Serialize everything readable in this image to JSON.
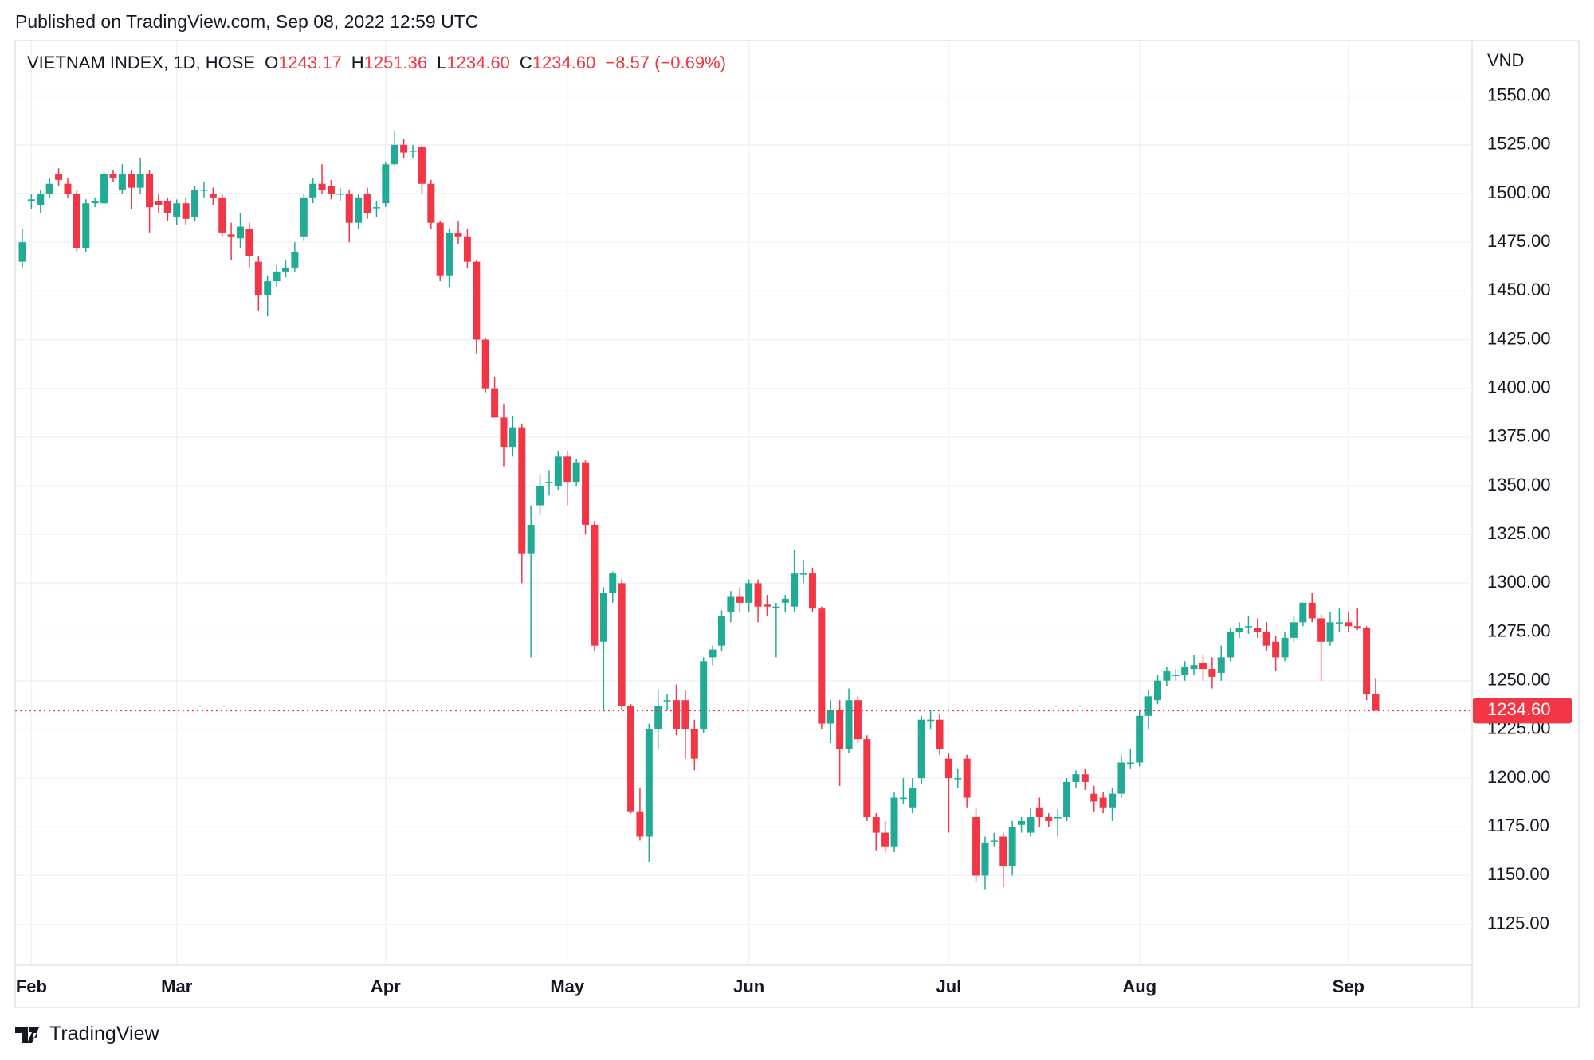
{
  "published": "Published on TradingView.com, Sep 08, 2022 12:59 UTC",
  "footer": "TradingView",
  "chart_data": {
    "type": "candlestick",
    "legend": {
      "symbol": "VIETNAM INDEX, 1D, HOSE",
      "items": [
        {
          "key": "O",
          "value": "1243.17"
        },
        {
          "key": "H",
          "value": "1251.36"
        },
        {
          "key": "L",
          "value": "1234.60"
        },
        {
          "key": "C",
          "value": "1234.60"
        }
      ],
      "change": "−8.57 (−0.69%)"
    },
    "y_axis_label": "VND",
    "last_price_label": "1234.60",
    "up_color": "#22ab94",
    "down_color": "#f23645",
    "grid": true,
    "ylim": [
      1104,
      1576
    ],
    "yticks": [
      {
        "value": 1125,
        "label": "1125.00"
      },
      {
        "value": 1150,
        "label": "1150.00"
      },
      {
        "value": 1175,
        "label": "1175.00"
      },
      {
        "value": 1200,
        "label": "1200.00"
      },
      {
        "value": 1225,
        "label": "1225.00"
      },
      {
        "value": 1250,
        "label": "1250.00"
      },
      {
        "value": 1275,
        "label": "1275.00"
      },
      {
        "value": 1300,
        "label": "1300.00"
      },
      {
        "value": 1325,
        "label": "1325.00"
      },
      {
        "value": 1350,
        "label": "1350.00"
      },
      {
        "value": 1375,
        "label": "1375.00"
      },
      {
        "value": 1400,
        "label": "1400.00"
      },
      {
        "value": 1425,
        "label": "1425.00"
      },
      {
        "value": 1450,
        "label": "1450.00"
      },
      {
        "value": 1475,
        "label": "1475.00"
      },
      {
        "value": 1500,
        "label": "1500.00"
      },
      {
        "value": 1525,
        "label": "1525.00"
      },
      {
        "value": 1550,
        "label": "1550.00"
      }
    ],
    "categories": [
      null,
      "Feb",
      null,
      null,
      null,
      null,
      null,
      null,
      null,
      null,
      null,
      null,
      null,
      null,
      null,
      null,
      null,
      "Mar",
      null,
      null,
      null,
      null,
      null,
      null,
      null,
      null,
      null,
      null,
      null,
      null,
      null,
      null,
      null,
      null,
      null,
      null,
      null,
      null,
      null,
      null,
      "Apr",
      null,
      null,
      null,
      null,
      null,
      null,
      null,
      null,
      null,
      null,
      null,
      null,
      null,
      null,
      null,
      null,
      null,
      null,
      null,
      "May",
      null,
      null,
      null,
      null,
      null,
      null,
      null,
      null,
      null,
      null,
      null,
      null,
      null,
      null,
      null,
      null,
      null,
      null,
      null,
      "Jun",
      null,
      null,
      null,
      null,
      null,
      null,
      null,
      null,
      null,
      null,
      null,
      null,
      null,
      null,
      null,
      null,
      null,
      null,
      null,
      null,
      null,
      "Jul",
      null,
      null,
      null,
      null,
      null,
      null,
      null,
      null,
      null,
      null,
      null,
      null,
      null,
      null,
      null,
      null,
      null,
      null,
      null,
      null,
      "Aug",
      null,
      null,
      null,
      null,
      null,
      null,
      null,
      null,
      null,
      null,
      null,
      null,
      null,
      null,
      null,
      null,
      null,
      null,
      null,
      null,
      null,
      null,
      "Sep",
      null,
      null,
      null
    ],
    "open": [
      1465,
      1496,
      1494,
      1500,
      1510,
      1505,
      1500,
      1472,
      1495,
      1495,
      1510,
      1502,
      1510,
      1503,
      1510,
      1496,
      1496,
      1488,
      1495,
      1488,
      1502,
      1500,
      1498,
      1479,
      1477,
      1482,
      1465,
      1448,
      1455,
      1460,
      1462,
      1478,
      1498,
      1505,
      1504,
      1500,
      1500,
      1485,
      1500,
      1493,
      1495,
      1515,
      1525,
      1522,
      1524,
      1505,
      1485,
      1458,
      1480,
      1478,
      1465,
      1425,
      1400,
      1385,
      1370,
      1380,
      1315,
      1340,
      1352,
      1350,
      1365,
      1352,
      1362,
      1330,
      1270,
      1295,
      1300,
      1237,
      1183,
      1170,
      1225,
      1240,
      1240,
      1240,
      1225,
      1225,
      1262,
      1268,
      1285,
      1293,
      1290,
      1300,
      1289,
      1288,
      1290,
      1288,
      1305,
      1305,
      1287,
      1228,
      1235,
      1215,
      1240,
      1220,
      1180,
      1172,
      1165,
      1190,
      1185,
      1200,
      1230,
      1230,
      1210,
      1200,
      1210,
      1180,
      1150,
      1168,
      1170,
      1155,
      1176,
      1172,
      1185,
      1180,
      1180,
      1180,
      1198,
      1202,
      1192,
      1190,
      1185,
      1192,
      1208,
      1208,
      1232,
      1240,
      1250,
      1253,
      1253,
      1256,
      1259,
      1256,
      1254,
      1262,
      1275,
      1278,
      1277,
      1275,
      1270,
      1262,
      1272,
      1280,
      1290,
      1282,
      1270,
      1280,
      1280,
      1278,
      1277,
      1243.17
    ],
    "high": [
      1482,
      1500,
      1502,
      1508,
      1513,
      1508,
      1502,
      1497,
      1498,
      1511,
      1512,
      1515,
      1512,
      1518,
      1512,
      1500,
      1498,
      1497,
      1498,
      1504,
      1506,
      1503,
      1500,
      1485,
      1490,
      1485,
      1468,
      1458,
      1463,
      1466,
      1475,
      1500,
      1508,
      1515,
      1507,
      1503,
      1502,
      1500,
      1503,
      1496,
      1516,
      1532,
      1528,
      1525,
      1525,
      1507,
      1486,
      1482,
      1486,
      1482,
      1466,
      1426,
      1406,
      1392,
      1386,
      1382,
      1340,
      1356,
      1358,
      1368,
      1368,
      1364,
      1363,
      1332,
      1298,
      1306,
      1302,
      1238,
      1195,
      1228,
      1245,
      1243,
      1248,
      1245,
      1230,
      1262,
      1268,
      1286,
      1296,
      1298,
      1302,
      1302,
      1294,
      1290,
      1294,
      1317,
      1312,
      1308,
      1288,
      1240,
      1240,
      1246,
      1242,
      1222,
      1182,
      1178,
      1193,
      1200,
      1200,
      1232,
      1235,
      1233,
      1213,
      1205,
      1212,
      1185,
      1170,
      1172,
      1172,
      1178,
      1180,
      1185,
      1190,
      1182,
      1184,
      1200,
      1204,
      1205,
      1196,
      1193,
      1195,
      1212,
      1215,
      1235,
      1245,
      1253,
      1257,
      1256,
      1260,
      1263,
      1263,
      1262,
      1268,
      1277,
      1280,
      1283,
      1282,
      1280,
      1273,
      1275,
      1283,
      1290,
      1295,
      1284,
      1285,
      1287,
      1285,
      1287,
      1278,
      1251.36
    ],
    "low": [
      1462,
      1492,
      1490,
      1498,
      1504,
      1498,
      1470,
      1470,
      1493,
      1494,
      1506,
      1500,
      1492,
      1500,
      1480,
      1490,
      1486,
      1484,
      1484,
      1486,
      1498,
      1494,
      1478,
      1466,
      1472,
      1462,
      1440,
      1437,
      1452,
      1457,
      1460,
      1476,
      1495,
      1500,
      1497,
      1496,
      1475,
      1482,
      1487,
      1488,
      1493,
      1514,
      1518,
      1518,
      1500,
      1482,
      1455,
      1452,
      1474,
      1462,
      1418,
      1398,
      1385,
      1360,
      1365,
      1300,
      1262,
      1335,
      1345,
      1348,
      1340,
      1350,
      1325,
      1265,
      1235,
      1290,
      1235,
      1182,
      1168,
      1157,
      1215,
      1235,
      1222,
      1210,
      1204,
      1223,
      1258,
      1265,
      1280,
      1285,
      1285,
      1280,
      1283,
      1262,
      1285,
      1285,
      1300,
      1285,
      1225,
      1218,
      1196,
      1213,
      1218,
      1178,
      1163,
      1162,
      1162,
      1187,
      1182,
      1197,
      1225,
      1212,
      1172,
      1195,
      1185,
      1147,
      1143,
      1165,
      1144,
      1150,
      1172,
      1170,
      1175,
      1175,
      1170,
      1178,
      1195,
      1194,
      1183,
      1182,
      1178,
      1190,
      1205,
      1206,
      1225,
      1238,
      1247,
      1250,
      1250,
      1253,
      1250,
      1246,
      1250,
      1260,
      1272,
      1274,
      1272,
      1265,
      1255,
      1260,
      1270,
      1278,
      1280,
      1250,
      1268,
      1275,
      1275,
      1276,
      1240,
      1234.6
    ],
    "close": [
      1475,
      1497,
      1500,
      1505,
      1507,
      1500,
      1472,
      1495,
      1496,
      1510,
      1508,
      1510,
      1503,
      1510,
      1493,
      1494,
      1490,
      1495,
      1487,
      1502,
      1502,
      1498,
      1480,
      1478,
      1483,
      1468,
      1448,
      1455,
      1460,
      1462,
      1470,
      1498,
      1505,
      1502,
      1500,
      1500,
      1485,
      1498,
      1490,
      1493,
      1515,
      1525,
      1521,
      1522,
      1505,
      1485,
      1458,
      1480,
      1478,
      1465,
      1425,
      1400,
      1385,
      1370,
      1380,
      1315,
      1330,
      1350,
      1352,
      1365,
      1352,
      1362,
      1330,
      1268,
      1295,
      1305,
      1237,
      1183,
      1170,
      1225,
      1237,
      1240,
      1225,
      1225,
      1210,
      1260,
      1266,
      1283,
      1293,
      1290,
      1300,
      1288,
      1288,
      1288,
      1292,
      1305,
      1305,
      1287,
      1228,
      1235,
      1215,
      1240,
      1220,
      1180,
      1172,
      1165,
      1190,
      1190,
      1195,
      1230,
      1230,
      1215,
      1200,
      1200,
      1190,
      1150,
      1167,
      1168,
      1155,
      1175,
      1178,
      1180,
      1180,
      1178,
      1180,
      1198,
      1202,
      1198,
      1188,
      1185,
      1192,
      1208,
      1208,
      1232,
      1242,
      1250,
      1255,
      1253,
      1257,
      1258,
      1256,
      1252,
      1262,
      1275,
      1277,
      1278,
      1275,
      1268,
      1262,
      1272,
      1280,
      1290,
      1282,
      1270,
      1280,
      1280,
      1278,
      1277,
      1243,
      1234.6
    ]
  }
}
